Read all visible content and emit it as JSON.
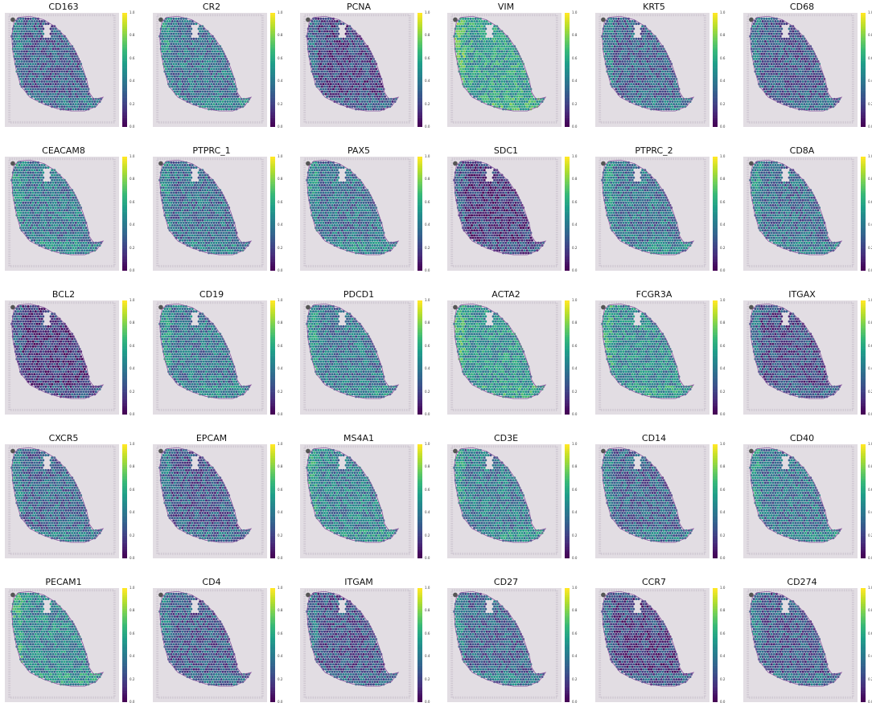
{
  "colorbar": {
    "colormap": "viridis",
    "ticks": [
      "1.0",
      "0.8",
      "0.6",
      "0.4",
      "0.2",
      "0.0"
    ]
  },
  "colors": {
    "background": "#ffffff",
    "tissue_bg": "#e2dde3",
    "capture_frame": "#cfc8d2",
    "outline": "#8a5aa0"
  },
  "panels": [
    {
      "title": "CD163",
      "level": 0.28
    },
    {
      "title": "CR2",
      "level": 0.36
    },
    {
      "title": "PCNA",
      "level": 0.2
    },
    {
      "title": "VIM",
      "level": 0.55
    },
    {
      "title": "KRT5",
      "level": 0.3
    },
    {
      "title": "CD68",
      "level": 0.26
    },
    {
      "title": "CEACAM8",
      "level": 0.38
    },
    {
      "title": "PTPRC_1",
      "level": 0.34
    },
    {
      "title": "PAX5",
      "level": 0.36
    },
    {
      "title": "SDC1",
      "level": 0.16
    },
    {
      "title": "PTPRC_2",
      "level": 0.36
    },
    {
      "title": "CD8A",
      "level": 0.34
    },
    {
      "title": "BCL2",
      "level": 0.16
    },
    {
      "title": "CD19",
      "level": 0.38
    },
    {
      "title": "PDCD1",
      "level": 0.38
    },
    {
      "title": "ACTA2",
      "level": 0.5
    },
    {
      "title": "FCGR3A",
      "level": 0.46
    },
    {
      "title": "ITGAX",
      "level": 0.22
    },
    {
      "title": "CXCR5",
      "level": 0.32
    },
    {
      "title": "EPCAM",
      "level": 0.26
    },
    {
      "title": "MS4A1",
      "level": 0.42
    },
    {
      "title": "CD3E",
      "level": 0.4
    },
    {
      "title": "CD14",
      "level": 0.3
    },
    {
      "title": "CD40",
      "level": 0.36
    },
    {
      "title": "PECAM1",
      "level": 0.45
    },
    {
      "title": "CD4",
      "level": 0.26
    },
    {
      "title": "ITGAM",
      "level": 0.24
    },
    {
      "title": "CD27",
      "level": 0.3
    },
    {
      "title": "CCR7",
      "level": 0.18
    },
    {
      "title": "CD274",
      "level": 0.26
    }
  ]
}
